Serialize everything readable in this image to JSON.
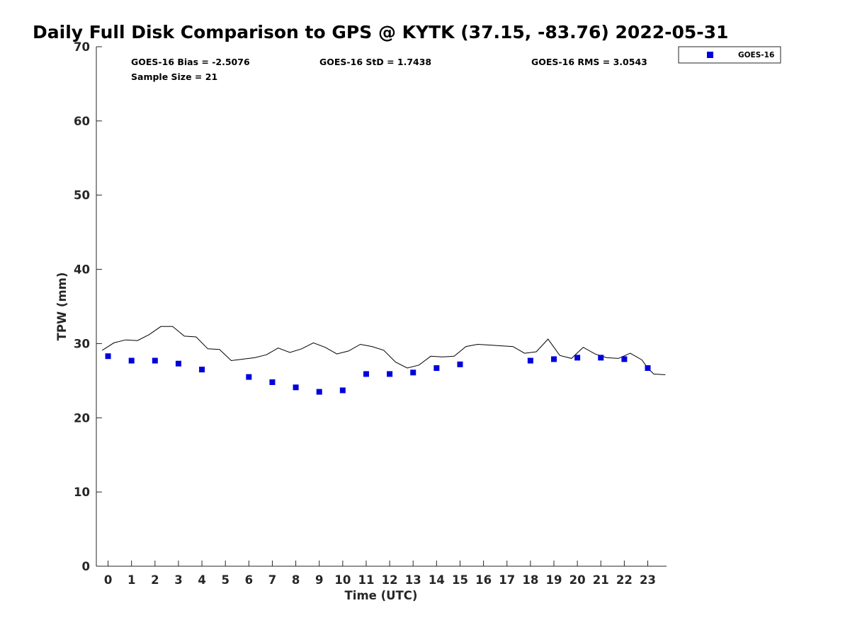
{
  "chart_data": {
    "type": "scatter",
    "title": "Daily Full Disk Comparison to GPS @ KYTK (37.15, -83.76) 2022-05-31",
    "xlabel": "Time (UTC)",
    "ylabel": "TPW (mm)",
    "xlim": [
      -0.5,
      23.8
    ],
    "ylim": [
      0,
      70
    ],
    "x_ticks": [
      0,
      1,
      2,
      3,
      4,
      5,
      6,
      7,
      8,
      9,
      10,
      11,
      12,
      13,
      14,
      15,
      16,
      17,
      18,
      19,
      20,
      21,
      22,
      23
    ],
    "x_tick_labels": [
      "0",
      "1",
      "2",
      "3",
      "4",
      "5",
      "6",
      "7",
      "8",
      "9",
      "10",
      "11",
      "12",
      "13",
      "14",
      "15",
      "16",
      "17",
      "18",
      "19",
      "20",
      "21",
      "22",
      "23"
    ],
    "y_ticks": [
      0,
      10,
      20,
      30,
      40,
      50,
      60,
      70
    ],
    "y_tick_labels": [
      "0",
      "10",
      "20",
      "30",
      "40",
      "50",
      "60",
      "70"
    ],
    "grid": false,
    "legend_position": "outside-top-right",
    "stats": {
      "bias": "GOES-16 Bias = -2.5076",
      "std": "GOES-16 StD = 1.7438",
      "rms": "GOES-16 RMS = 3.0543",
      "sample": "Sample Size = 21"
    },
    "series": [
      {
        "name": "GOES-16",
        "kind": "scatter",
        "marker": "square",
        "color": "#0000dd",
        "x": [
          0,
          1,
          2,
          3,
          4,
          6,
          7,
          8,
          9,
          10,
          11,
          12,
          13,
          14,
          15,
          18,
          19,
          20,
          21,
          22,
          23
        ],
        "y": [
          28.3,
          27.7,
          27.7,
          27.3,
          26.5,
          25.5,
          24.8,
          24.1,
          23.5,
          23.7,
          25.9,
          25.9,
          26.1,
          26.7,
          27.2,
          27.7,
          27.9,
          28.1,
          28.1,
          27.9,
          26.7
        ]
      },
      {
        "kind": "line",
        "color": "#000000",
        "x": [
          -0.25,
          0.25,
          0.75,
          1.25,
          1.75,
          2.25,
          2.75,
          3.25,
          3.75,
          4.25,
          4.75,
          5.25,
          5.75,
          6.25,
          6.75,
          7.25,
          7.75,
          8.25,
          8.75,
          9.25,
          9.75,
          10.25,
          10.75,
          11.25,
          11.75,
          12.25,
          12.75,
          13.25,
          13.75,
          14.25,
          14.75,
          15.25,
          15.75,
          16.25,
          16.75,
          17.25,
          17.75,
          18.25,
          18.75,
          19.25,
          19.75,
          20.25,
          20.75,
          21.25,
          21.75,
          22.25,
          22.75,
          23.0,
          23.25,
          23.75
        ],
        "y": [
          29.1,
          30.1,
          30.5,
          30.4,
          31.2,
          32.3,
          32.3,
          31.0,
          30.9,
          29.3,
          29.2,
          27.7,
          27.9,
          28.1,
          28.5,
          29.4,
          28.8,
          29.3,
          30.1,
          29.5,
          28.6,
          29.0,
          29.9,
          29.6,
          29.1,
          27.5,
          26.7,
          27.1,
          28.3,
          28.2,
          28.3,
          29.6,
          29.9,
          29.8,
          29.7,
          29.6,
          28.7,
          28.9,
          30.6,
          28.4,
          28.0,
          29.5,
          28.6,
          28.1,
          28.0,
          28.7,
          27.8,
          26.7,
          25.9,
          25.8
        ]
      }
    ]
  }
}
